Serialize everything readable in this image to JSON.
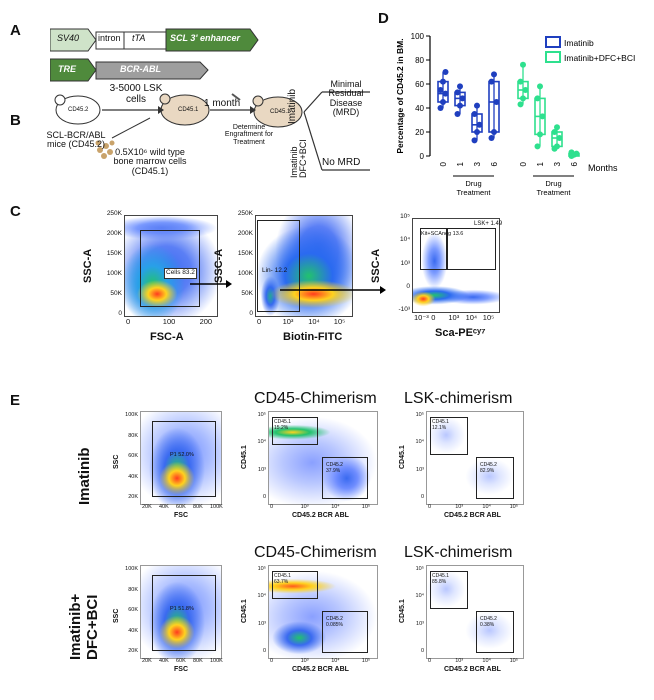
{
  "panel_labels": {
    "a": "A",
    "b": "B",
    "c": "C",
    "d": "D",
    "e": "E"
  },
  "panel_a": {
    "row1": {
      "sv40": "SV40",
      "intron": "intron",
      "tta": "tTA",
      "enhancer": "SCL 3' enhancer"
    },
    "row2": {
      "tre": "TRE",
      "bcr_abl": "BCR-ABL"
    }
  },
  "panel_b": {
    "donor_mouse_label": "CD45.2",
    "donor_caption": "SCL-BCR/ABL mice (CD45.2)",
    "lsk_cells": "3-5000 LSK cells",
    "recipient_label": "CD45.1",
    "wt_caption": "0.5X10⁶ wild type bone marrow cells (CD45.1)",
    "one_month": "1 month",
    "determine": "Determine Engraftment for Treatment",
    "mouse3_label": "CD45.1",
    "imatinib": "Imatinib",
    "imatinib_dfc": "Imatinib DFC+BCI",
    "mrd": "Minimal Residual Disease (MRD)",
    "no_mrd": "No MRD"
  },
  "panel_c": {
    "plots": [
      {
        "ylabel": "SSC-A",
        "xlabel": "FSC-A",
        "gate_label": "Cells",
        "gate_value": "83.2",
        "yticks": [
          "250K",
          "200K",
          "150K",
          "100K",
          "50K",
          "0"
        ],
        "xticks": [
          "0",
          "100",
          "200"
        ]
      },
      {
        "ylabel": "SSC-A",
        "xlabel": "Biotin-FITC",
        "gate_label": "Lin-",
        "gate_value": "12.2",
        "yticks": [
          "250K",
          "200K",
          "150K",
          "100K",
          "50K",
          "0"
        ],
        "xticks": [
          "0",
          "10³",
          "10⁴",
          "10⁵"
        ]
      },
      {
        "ylabel": "SSC-A",
        "xlabel": "Sca-PEᶜʸ⁷",
        "gate1_label": "Kit+SCAneg",
        "gate1_value": "13.6",
        "gate2_label": "LSK+",
        "gate2_value": "1.49",
        "yticks": [
          "10⁵",
          "10⁴",
          "10³",
          "0",
          "-10³"
        ],
        "xticks": [
          "10⁻³",
          "0",
          "10³",
          "10⁴",
          "10⁵"
        ]
      }
    ]
  },
  "panel_e": {
    "col_headers": {
      "cd45": "CD45-Chimerism",
      "lsk": "LSK-chimerism"
    },
    "rows": [
      {
        "row_label": "Imatinib",
        "fsc": {
          "ylabel": "SSC",
          "xlabel": "FSC",
          "gate_label": "P1",
          "gate_value": "52.0%",
          "yticks": [
            "100K",
            "80K",
            "60K",
            "40K",
            "20K"
          ],
          "xticks": [
            "20K",
            "40K",
            "60K",
            "80K",
            "100K"
          ]
        },
        "cd45": {
          "ylabel": "CD45.1",
          "xlabel": "CD45.2 BCR ABL",
          "g1_label": "CD45.1",
          "g1_value": "15.2%",
          "g2_label": "CD45.2",
          "g2_value": "37.9%",
          "yticks": [
            "10⁵",
            "10⁴",
            "10³",
            "0"
          ],
          "xticks": [
            "0",
            "10³",
            "10⁴",
            "10⁵"
          ]
        },
        "lsk": {
          "ylabel": "CD45.1",
          "xlabel": "CD45.2 BCR ABL",
          "g1_label": "CD45.1",
          "g1_value": "12.1%",
          "g2_label": "CD45.2",
          "g2_value": "82.9%",
          "yticks": [
            "10⁵",
            "10⁴",
            "10³",
            "0"
          ],
          "xticks": [
            "0",
            "10³",
            "10⁴",
            "10⁵"
          ]
        }
      },
      {
        "row_label": "Imatinib+ DFC+BCI",
        "fsc": {
          "ylabel": "SSC",
          "xlabel": "FSC",
          "gate_label": "P1",
          "gate_value": "51.8%",
          "yticks": [
            "100K",
            "80K",
            "60K",
            "40K",
            "20K"
          ],
          "xticks": [
            "20K",
            "40K",
            "60K",
            "80K",
            "100K"
          ]
        },
        "cd45": {
          "ylabel": "CD45.1",
          "xlabel": "CD45.2 BCR ABL",
          "g1_label": "CD45.1",
          "g1_value": "63.7%",
          "g2_label": "CD45.2",
          "g2_value": "0.085%",
          "yticks": [
            "10⁵",
            "10⁴",
            "10³",
            "0"
          ],
          "xticks": [
            "0",
            "10³",
            "10⁴",
            "10⁵"
          ]
        },
        "lsk": {
          "ylabel": "CD45.1",
          "xlabel": "CD45.2 BCR ABL",
          "g1_label": "CD45.1",
          "g1_value": "85.8%",
          "g2_label": "CD45.2",
          "g2_value": "0.38%",
          "yticks": [
            "10⁵",
            "10⁴",
            "10³",
            "0"
          ],
          "xticks": [
            "0",
            "10³",
            "10⁴",
            "10⁵"
          ]
        }
      }
    ]
  },
  "chart_data": {
    "type": "box",
    "title": "",
    "ylabel": "Percentage of CD45.2 in BM.",
    "xlabel": "Months",
    "ylim": [
      0,
      100
    ],
    "yticks": [
      0,
      20,
      40,
      60,
      80,
      100
    ],
    "group_label": "Drug Treatment",
    "categories": [
      "0",
      "1",
      "3",
      "6"
    ],
    "legend_position": "top-right",
    "series": [
      {
        "name": "Imatinib",
        "color": "#1f3fbf",
        "boxes": [
          {
            "month": "0",
            "min": 40,
            "q1": 45,
            "median": 52,
            "q3": 62,
            "max": 70,
            "points": [
              40,
              45,
              52,
              55,
              62,
              70
            ]
          },
          {
            "month": "1",
            "min": 35,
            "q1": 42,
            "median": 48,
            "q3": 53,
            "max": 58,
            "points": [
              35,
              42,
              48,
              53,
              58
            ]
          },
          {
            "month": "3",
            "min": 13,
            "q1": 20,
            "median": 26,
            "q3": 35,
            "max": 42,
            "points": [
              13,
              20,
              26,
              35,
              42
            ]
          },
          {
            "month": "6",
            "min": 15,
            "q1": 20,
            "median": 45,
            "q3": 62,
            "max": 68,
            "points": [
              15,
              20,
              45,
              62,
              68
            ]
          }
        ]
      },
      {
        "name": "Imatinib+DFC+BCI",
        "color": "#2ee08e",
        "boxes": [
          {
            "month": "0",
            "min": 43,
            "q1": 48,
            "median": 55,
            "q3": 62,
            "max": 76,
            "points": [
              43,
              48,
              55,
              62,
              76
            ]
          },
          {
            "month": "1",
            "min": 8,
            "q1": 18,
            "median": 33,
            "q3": 48,
            "max": 58,
            "points": [
              8,
              18,
              33,
              48,
              58
            ]
          },
          {
            "month": "3",
            "min": 6,
            "q1": 8,
            "median": 15,
            "q3": 20,
            "max": 24,
            "points": [
              6,
              8,
              15,
              20,
              24
            ]
          },
          {
            "month": "6",
            "min": 0,
            "q1": 0,
            "median": 1,
            "q3": 2,
            "max": 3,
            "points": [
              0,
              1,
              2,
              3
            ]
          }
        ]
      }
    ]
  }
}
